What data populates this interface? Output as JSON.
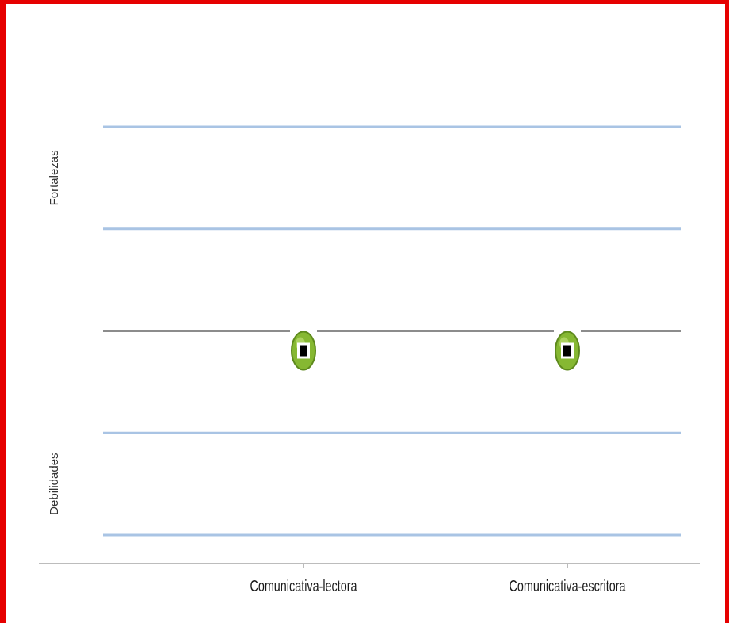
{
  "chart_data": {
    "type": "scatter",
    "categories": [
      "Comunicativa-lectora",
      "Comunicativa-escritora"
    ],
    "values": [
      0,
      0
    ],
    "reference_lines": [
      {
        "y": 2,
        "color": "#a9c4e4"
      },
      {
        "y": 1,
        "color": "#a9c4e4"
      },
      {
        "y": 0,
        "color": "#8c8c8c"
      },
      {
        "y": -1,
        "color": "#a9c4e4"
      },
      {
        "y": -2,
        "color": "#a9c4e4"
      }
    ],
    "ylim": [
      -2,
      2
    ],
    "y_band_labels": [
      {
        "text": "Fortalezas",
        "center": 1.5
      },
      {
        "text": "Debilidades",
        "center": -1.5
      }
    ],
    "marker": {
      "fill": "#86b832",
      "stroke": "#5e8a1d",
      "inner": "#000000"
    },
    "frame_color": "#e60000",
    "axis_color": "#a6a6a6",
    "grid": true,
    "legend": "none"
  }
}
